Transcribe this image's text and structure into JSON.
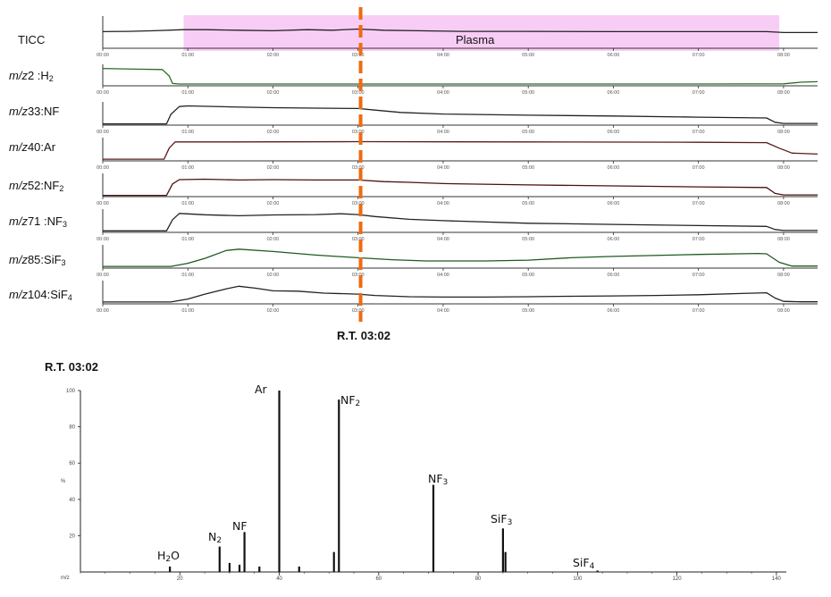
{
  "time_axis": {
    "tick_labels": [
      "00:00",
      "01:00",
      "02:00",
      "03:00",
      "04:00",
      "05:00",
      "06:00",
      "07:00",
      "08:00"
    ],
    "minutes": [
      0,
      1,
      2,
      3,
      4,
      5,
      6,
      7,
      8
    ],
    "range_minutes": [
      0,
      8.4
    ]
  },
  "plasma_band": {
    "label": "Plasma",
    "start_min": 0.95,
    "end_min": 7.95,
    "color": "#f7c8f4"
  },
  "rt_marker": {
    "label": "R.T. 03:02",
    "time_min": 3.03,
    "color": "#f06a10"
  },
  "spectrum_title": "R.T. 03:02",
  "traces": [
    {
      "label": "TICC",
      "mz": "",
      "species": "",
      "sub": ""
    },
    {
      "label": "",
      "mz": "m/z",
      "species": "2 :H",
      "sub": "2"
    },
    {
      "label": "",
      "mz": "m/z",
      "species": "33:NF",
      "sub": ""
    },
    {
      "label": "",
      "mz": "m/z",
      "species": "40:Ar",
      "sub": ""
    },
    {
      "label": "",
      "mz": "m/z",
      "species": "52:NF",
      "sub": "2"
    },
    {
      "label": "",
      "mz": "m/z",
      "species": "71 :NF",
      "sub": "3"
    },
    {
      "label": "",
      "mz": "m/z",
      "species": "85:SiF",
      "sub": "3"
    },
    {
      "label": "",
      "mz": "m/z",
      "species": "104:SiF",
      "sub": "4"
    }
  ],
  "peak_labels": [
    {
      "text": "H",
      "sub": "2",
      "tail": "O"
    },
    {
      "text": "N",
      "sub": "2",
      "tail": ""
    },
    {
      "text": "NF",
      "sub": "",
      "tail": ""
    },
    {
      "text": "Ar",
      "sub": "",
      "tail": ""
    },
    {
      "text": "NF",
      "sub": "2",
      "tail": ""
    },
    {
      "text": "NF",
      "sub": "3",
      "tail": ""
    },
    {
      "text": "SiF",
      "sub": "3",
      "tail": ""
    },
    {
      "text": "SiF",
      "sub": "4",
      "tail": ""
    }
  ],
  "chart_data": [
    {
      "type": "line",
      "title": "",
      "xlabel": "",
      "x_unit": "min",
      "xlim": [
        0,
        8.4
      ],
      "x_tick_labels": [
        "00:00",
        "01:00",
        "02:00",
        "03:00",
        "04:00",
        "05:00",
        "06:00",
        "07:00",
        "08:00"
      ],
      "annotations": [
        "Plasma",
        "R.T. 03:02"
      ],
      "series": [
        {
          "name": "TICC",
          "color": "#222222",
          "x": [
            0,
            0.3,
            0.6,
            0.95,
            1.2,
            1.6,
            2.0,
            2.4,
            2.7,
            3.0,
            3.3,
            3.7,
            4.2,
            5.0,
            6.0,
            7.0,
            7.8,
            8.0,
            8.4
          ],
          "y": [
            0.55,
            0.56,
            0.58,
            0.62,
            0.62,
            0.6,
            0.58,
            0.62,
            0.6,
            0.64,
            0.6,
            0.58,
            0.56,
            0.56,
            0.55,
            0.55,
            0.55,
            0.52,
            0.52
          ]
        },
        {
          "name": "m/z2 :H2",
          "color": "#2a6a2a",
          "x": [
            0,
            0.4,
            0.7,
            0.78,
            0.82,
            0.9,
            1.5,
            3.0,
            5.0,
            7.0,
            8.0,
            8.2,
            8.4
          ],
          "y": [
            0.92,
            0.88,
            0.86,
            0.5,
            0.08,
            0.05,
            0.05,
            0.05,
            0.05,
            0.05,
            0.06,
            0.15,
            0.18
          ]
        },
        {
          "name": "m/z33:NF",
          "color": "#222222",
          "x": [
            0,
            0.75,
            0.8,
            0.9,
            1.0,
            1.5,
            2.0,
            2.5,
            3.0,
            3.2,
            3.5,
            4.0,
            5.0,
            6.0,
            7.0,
            7.8,
            7.9,
            8.0,
            8.4
          ],
          "y": [
            0.02,
            0.02,
            0.5,
            0.9,
            0.93,
            0.88,
            0.84,
            0.82,
            0.8,
            0.72,
            0.6,
            0.52,
            0.46,
            0.42,
            0.36,
            0.32,
            0.1,
            0.04,
            0.04
          ]
        },
        {
          "name": "m/z40:Ar",
          "color": "#5a1a1a",
          "x": [
            0,
            0.72,
            0.78,
            0.85,
            1.5,
            3.0,
            5.0,
            7.0,
            7.8,
            7.95,
            8.1,
            8.4
          ],
          "y": [
            0.04,
            0.04,
            0.6,
            0.92,
            0.92,
            0.93,
            0.92,
            0.9,
            0.88,
            0.6,
            0.35,
            0.3
          ]
        },
        {
          "name": "m/z52:NF2",
          "color": "#4a1010",
          "x": [
            0,
            0.75,
            0.82,
            0.9,
            1.2,
            1.6,
            2.0,
            2.5,
            3.0,
            3.3,
            3.6,
            4.0,
            5.0,
            6.0,
            7.0,
            7.8,
            7.9,
            8.0,
            8.4
          ],
          "y": [
            0.02,
            0.02,
            0.6,
            0.82,
            0.84,
            0.8,
            0.82,
            0.8,
            0.8,
            0.72,
            0.68,
            0.62,
            0.55,
            0.5,
            0.45,
            0.42,
            0.12,
            0.04,
            0.04
          ]
        },
        {
          "name": "m/z71 :NF3",
          "color": "#222222",
          "x": [
            0,
            0.75,
            0.82,
            0.9,
            1.2,
            1.6,
            2.0,
            2.5,
            2.8,
            3.0,
            3.2,
            3.6,
            4.0,
            5.0,
            6.0,
            7.0,
            7.8,
            7.9,
            8.0,
            8.4
          ],
          "y": [
            0.03,
            0.03,
            0.6,
            0.92,
            0.85,
            0.8,
            0.84,
            0.86,
            0.9,
            0.86,
            0.76,
            0.62,
            0.55,
            0.42,
            0.36,
            0.3,
            0.26,
            0.1,
            0.05,
            0.05
          ]
        },
        {
          "name": "m/z85:SiF3",
          "color": "#1f5a1f",
          "x": [
            0,
            0.8,
            1.0,
            1.2,
            1.45,
            1.6,
            2.0,
            2.5,
            3.0,
            3.4,
            3.8,
            4.5,
            5.0,
            5.5,
            6.0,
            7.0,
            7.7,
            7.8,
            7.95,
            8.1,
            8.4
          ],
          "y": [
            0.04,
            0.04,
            0.2,
            0.45,
            0.85,
            0.92,
            0.8,
            0.62,
            0.48,
            0.38,
            0.32,
            0.32,
            0.36,
            0.48,
            0.55,
            0.65,
            0.7,
            0.68,
            0.25,
            0.06,
            0.06
          ]
        },
        {
          "name": "m/z104:SiF4",
          "color": "#222222",
          "x": [
            0,
            0.8,
            1.0,
            1.2,
            1.45,
            1.6,
            1.8,
            2.0,
            2.3,
            2.6,
            3.0,
            3.2,
            3.6,
            4.0,
            4.5,
            5.0,
            5.5,
            6.0,
            6.5,
            7.0,
            7.5,
            7.8,
            7.9,
            8.0,
            8.2,
            8.4
          ],
          "y": [
            0.05,
            0.05,
            0.2,
            0.45,
            0.72,
            0.85,
            0.75,
            0.62,
            0.6,
            0.5,
            0.45,
            0.38,
            0.32,
            0.3,
            0.3,
            0.32,
            0.34,
            0.36,
            0.38,
            0.42,
            0.48,
            0.52,
            0.25,
            0.08,
            0.06,
            0.06
          ]
        }
      ]
    },
    {
      "type": "bar",
      "title": "R.T. 03:02",
      "xlabel": "m/z",
      "ylabel": "%",
      "xlim": [
        0,
        142
      ],
      "ylim": [
        0,
        100
      ],
      "x_ticks": [
        20,
        40,
        60,
        80,
        100,
        120,
        140
      ],
      "y_ticks": [
        20,
        40,
        60,
        80,
        100
      ],
      "x": [
        18,
        28,
        30,
        32,
        33,
        36,
        40,
        44,
        51,
        52,
        71,
        85,
        85.5,
        104
      ],
      "values": [
        3,
        14,
        5,
        4,
        22,
        3,
        100,
        3,
        11,
        95,
        48,
        24,
        11,
        0.8
      ]
    }
  ]
}
